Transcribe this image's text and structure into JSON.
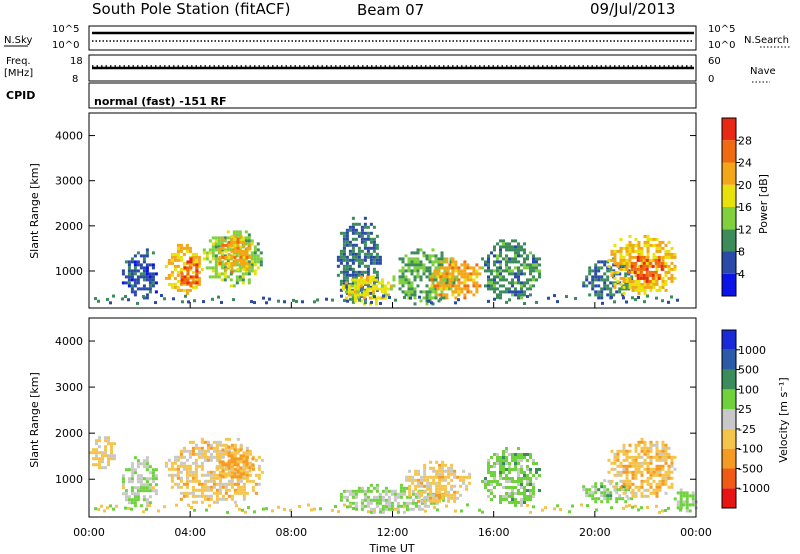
{
  "header": {
    "station": "South Pole Station (fitACF)",
    "beam": "Beam 07",
    "date": "09/Jul/2013"
  },
  "top_panels": {
    "nsky_label": "N.Sky",
    "nsky_ticks": [
      "10^5",
      "10^0"
    ],
    "nsearch_label": "N.Search",
    "nsearch_ticks": [
      "10^5",
      "10^0"
    ],
    "freq_label": "Freq.",
    "freq_unit": "[MHz]",
    "freq_ticks": [
      "18",
      "8"
    ],
    "nave_label": "Nave",
    "nave_ticks": [
      "60",
      "0"
    ],
    "cpid_label": "CPID",
    "cpid_text": "normal (fast) -151 RF"
  },
  "chart_data": [
    {
      "type": "heatmap",
      "title": "",
      "ylabel": "Slant Range [km]",
      "xlabel": "",
      "ylim": [
        180,
        4500
      ],
      "xlim": [
        "00:00",
        "24:00"
      ],
      "yticks": [
        "4000",
        "3000",
        "2000",
        "1000"
      ],
      "colorbar": {
        "label": "Power [dB]",
        "ticks": [
          "28",
          "24",
          "20",
          "16",
          "12",
          "8",
          "4"
        ],
        "range": [
          0,
          32
        ],
        "colors": [
          "#0a14e6",
          "#2a4aa8",
          "#3b8c5a",
          "#7fcf3f",
          "#e8e20a",
          "#f2a618",
          "#f06a12",
          "#e82a14"
        ]
      },
      "echo_regions": [
        {
          "t_start": 1.3,
          "t_end": 2.7,
          "r_low": 400,
          "r_high": 1500,
          "value": 6
        },
        {
          "t_start": 3.0,
          "t_end": 4.5,
          "r_low": 500,
          "r_high": 1600,
          "value": 20
        },
        {
          "t_start": 3.5,
          "t_end": 4.3,
          "r_low": 700,
          "r_high": 1300,
          "value": 27
        },
        {
          "t_start": 4.5,
          "t_end": 6.8,
          "r_low": 700,
          "r_high": 1900,
          "value": 14
        },
        {
          "t_start": 5.0,
          "t_end": 6.5,
          "r_low": 1000,
          "r_high": 1800,
          "value": 22
        },
        {
          "t_start": 9.8,
          "t_end": 11.5,
          "r_low": 300,
          "r_high": 2200,
          "value": 8
        },
        {
          "t_start": 10.0,
          "t_end": 12.0,
          "r_low": 300,
          "r_high": 900,
          "value": 18
        },
        {
          "t_start": 12.0,
          "t_end": 14.5,
          "r_low": 300,
          "r_high": 1500,
          "value": 12
        },
        {
          "t_start": 13.5,
          "t_end": 15.5,
          "r_low": 400,
          "r_high": 1300,
          "value": 22
        },
        {
          "t_start": 15.5,
          "t_end": 17.8,
          "r_low": 400,
          "r_high": 1700,
          "value": 10
        },
        {
          "t_start": 19.5,
          "t_end": 21.5,
          "r_low": 400,
          "r_high": 1300,
          "value": 8
        },
        {
          "t_start": 20.5,
          "t_end": 23.2,
          "r_low": 500,
          "r_high": 1800,
          "value": 20
        },
        {
          "t_start": 21.3,
          "t_end": 22.8,
          "r_low": 800,
          "r_high": 1400,
          "value": 27
        }
      ]
    },
    {
      "type": "heatmap",
      "title": "",
      "ylabel": "Slant Range [km]",
      "xlabel": "Time UT",
      "ylim": [
        180,
        4500
      ],
      "xlim": [
        "00:00",
        "24:00"
      ],
      "yticks": [
        "4000",
        "3000",
        "2000",
        "1000"
      ],
      "xticks": [
        "00:00",
        "04:00",
        "08:00",
        "12:00",
        "16:00",
        "20:00",
        "00:00"
      ],
      "colorbar": {
        "label": "Velocity [m s⁻¹]",
        "ticks": [
          "1000",
          "500",
          "100",
          "25",
          "-25",
          "-100",
          "-500",
          "-1000"
        ],
        "range": [
          -1000,
          1000
        ],
        "colors": [
          "#e81414",
          "#f05a14",
          "#f59a22",
          "#f5c44a",
          "#c8c8c8",
          "#6fd23c",
          "#3a8c5a",
          "#2a5aa8",
          "#1a2ad8"
        ]
      },
      "echo_regions": [
        {
          "t_start": 0.0,
          "t_end": 1.0,
          "r_low": 1200,
          "r_high": 2000,
          "value": -150
        },
        {
          "t_start": 1.3,
          "t_end": 2.7,
          "r_low": 400,
          "r_high": 1500,
          "value": 60
        },
        {
          "t_start": 3.0,
          "t_end": 6.8,
          "r_low": 500,
          "r_high": 1900,
          "value": -200
        },
        {
          "t_start": 5.0,
          "t_end": 6.5,
          "r_low": 1000,
          "r_high": 1800,
          "value": -350
        },
        {
          "t_start": 9.8,
          "t_end": 14.0,
          "r_low": 300,
          "r_high": 900,
          "value": 150
        },
        {
          "t_start": 12.5,
          "t_end": 15.0,
          "r_low": 500,
          "r_high": 1400,
          "value": -200
        },
        {
          "t_start": 15.5,
          "t_end": 17.8,
          "r_low": 400,
          "r_high": 1700,
          "value": 200
        },
        {
          "t_start": 19.5,
          "t_end": 21.5,
          "r_low": 500,
          "r_high": 1000,
          "value": 180
        },
        {
          "t_start": 20.5,
          "t_end": 23.2,
          "r_low": 600,
          "r_high": 1900,
          "value": -250
        },
        {
          "t_start": 23.0,
          "t_end": 24.0,
          "r_low": 300,
          "r_high": 800,
          "value": 150
        }
      ]
    }
  ]
}
